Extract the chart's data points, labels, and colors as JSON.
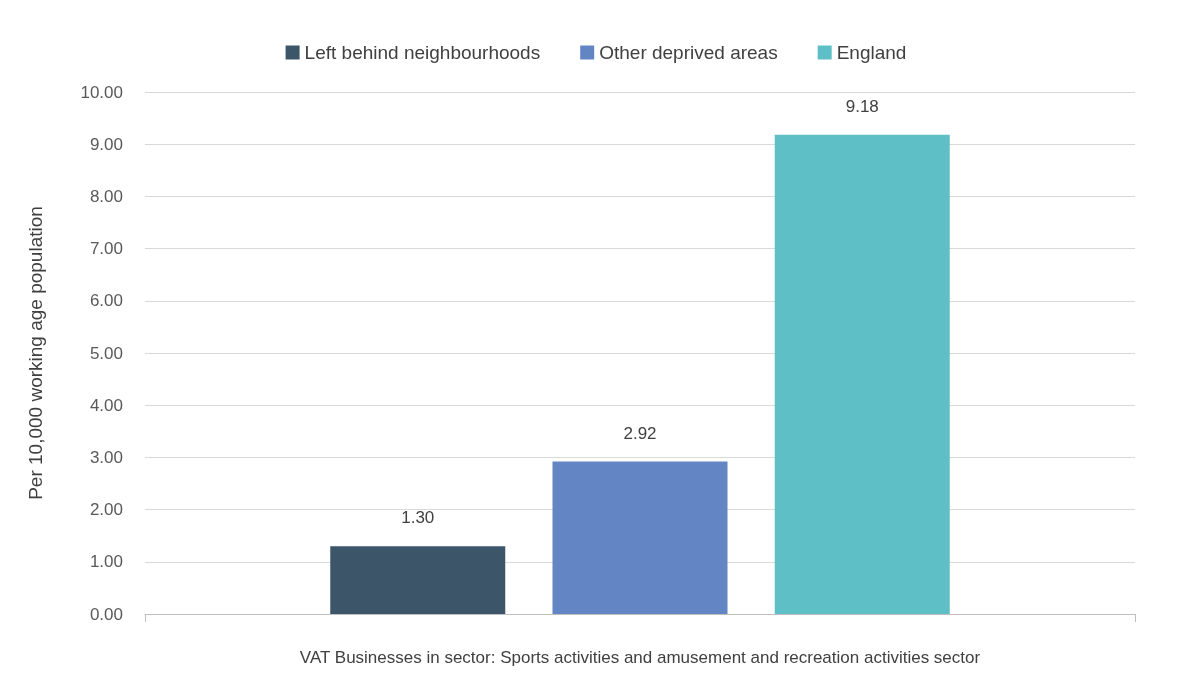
{
  "chart_data": {
    "type": "bar",
    "xlabel": "VAT Businesses in sector: Sports activities and amusement and recreation activities sector",
    "ylabel": "Per 10,000 working age population",
    "categories": [
      null
    ],
    "series": [
      {
        "name": "Left behind neighbourhoods",
        "color": "#3d5568",
        "values": [
          1.3
        ],
        "value_labels": [
          "1.30"
        ]
      },
      {
        "name": "Other deprived areas",
        "color": "#6485c3",
        "values": [
          2.92
        ],
        "value_labels": [
          "2.92"
        ]
      },
      {
        "name": "England",
        "color": "#5fbfc6",
        "values": [
          9.18
        ],
        "value_labels": [
          "9.18"
        ]
      }
    ],
    "ylim": [
      0,
      10
    ],
    "yticks": [
      {
        "value": 0,
        "label": "0.00"
      },
      {
        "value": 1,
        "label": "1.00"
      },
      {
        "value": 2,
        "label": "2.00"
      },
      {
        "value": 3,
        "label": "3.00"
      },
      {
        "value": 4,
        "label": "4.00"
      },
      {
        "value": 5,
        "label": "5.00"
      },
      {
        "value": 6,
        "label": "6.00"
      },
      {
        "value": 7,
        "label": "7.00"
      },
      {
        "value": 8,
        "label": "8.00"
      },
      {
        "value": 9,
        "label": "9.00"
      },
      {
        "value": 10,
        "label": "10.00"
      }
    ],
    "grid": "y",
    "legend": "top"
  }
}
